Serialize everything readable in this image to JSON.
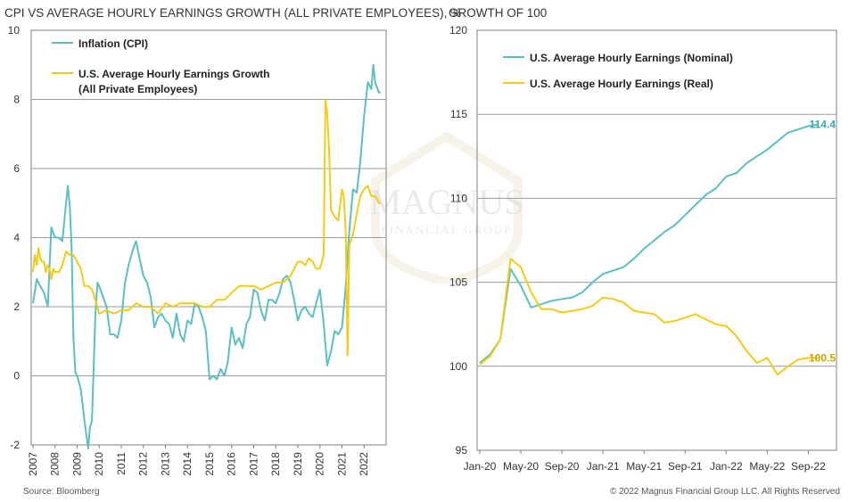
{
  "source": "Source: Bloomberg",
  "copyright": "© 2022 Magnus Financial Group LLC. All Rights Reserved",
  "watermark": {
    "line1": "MAGNUS",
    "line2": "FINANCIAL GROUP"
  },
  "colors": {
    "cpi": "#5bbfc3",
    "wage": "#f2cb19",
    "nominal": "#5bbfc3",
    "real": "#f2cb19",
    "grid": "#9a9a9a",
    "axis": "#808080"
  },
  "chart_data": [
    {
      "type": "line",
      "title": "CPI VS AVERAGE HOURLY EARNINGS GROWTH (ALL PRIVATE EMPLOYEES), %",
      "xlabel": "",
      "ylabel": "",
      "xlim": [
        2006.92,
        2023.0
      ],
      "ylim": [
        -2,
        10
      ],
      "yticks": [
        -2,
        0,
        2,
        4,
        6,
        8,
        10
      ],
      "xticks": [
        "2007",
        "2008",
        "2009",
        "2010",
        "2011",
        "2012",
        "2013",
        "2014",
        "2015",
        "2016",
        "2017",
        "2018",
        "2019",
        "2020",
        "2021",
        "2022"
      ],
      "grid": "horizontal",
      "legend": "top-left",
      "series": [
        {
          "name": "Inflation (CPI)",
          "color": "#5bbfc3",
          "x": [
            2007.0,
            2007.17,
            2007.33,
            2007.5,
            2007.67,
            2007.83,
            2008.0,
            2008.17,
            2008.33,
            2008.5,
            2008.58,
            2008.67,
            2008.75,
            2008.83,
            2008.92,
            2009.0,
            2009.17,
            2009.33,
            2009.5,
            2009.58,
            2009.67,
            2009.83,
            2009.92,
            2010.0,
            2010.17,
            2010.33,
            2010.5,
            2010.67,
            2010.83,
            2011.0,
            2011.17,
            2011.33,
            2011.5,
            2011.67,
            2011.83,
            2012.0,
            2012.17,
            2012.33,
            2012.5,
            2012.67,
            2012.83,
            2013.0,
            2013.17,
            2013.33,
            2013.5,
            2013.67,
            2013.83,
            2014.0,
            2014.17,
            2014.33,
            2014.5,
            2014.67,
            2014.83,
            2015.0,
            2015.17,
            2015.33,
            2015.5,
            2015.67,
            2015.83,
            2016.0,
            2016.17,
            2016.33,
            2016.5,
            2016.67,
            2016.83,
            2017.0,
            2017.17,
            2017.33,
            2017.5,
            2017.67,
            2017.83,
            2018.0,
            2018.17,
            2018.33,
            2018.5,
            2018.67,
            2018.83,
            2019.0,
            2019.17,
            2019.33,
            2019.5,
            2019.67,
            2019.83,
            2020.0,
            2020.17,
            2020.33,
            2020.5,
            2020.67,
            2020.83,
            2021.0,
            2021.17,
            2021.33,
            2021.5,
            2021.67,
            2021.83,
            2022.0,
            2022.17,
            2022.33,
            2022.42,
            2022.5,
            2022.67,
            2022.75
          ],
          "y": [
            2.1,
            2.8,
            2.6,
            2.4,
            2.0,
            4.3,
            4.0,
            4.0,
            3.9,
            5.0,
            5.5,
            4.9,
            3.7,
            1.1,
            0.1,
            0.0,
            -0.4,
            -1.3,
            -2.1,
            -1.5,
            -1.3,
            1.8,
            2.7,
            2.6,
            2.3,
            2.0,
            1.2,
            1.2,
            1.1,
            1.6,
            2.7,
            3.2,
            3.6,
            3.9,
            3.4,
            2.9,
            2.7,
            2.3,
            1.4,
            1.7,
            1.8,
            1.6,
            1.5,
            1.1,
            1.8,
            1.2,
            1.0,
            1.6,
            1.5,
            2.1,
            2.0,
            1.7,
            1.3,
            -0.1,
            0.0,
            -0.1,
            0.2,
            0.0,
            0.4,
            1.4,
            0.9,
            1.1,
            0.8,
            1.5,
            1.7,
            2.5,
            2.4,
            1.9,
            1.6,
            2.2,
            2.2,
            2.1,
            2.4,
            2.8,
            2.9,
            2.7,
            2.2,
            1.6,
            1.9,
            2.0,
            1.8,
            1.7,
            2.1,
            2.5,
            1.5,
            0.3,
            0.7,
            1.3,
            1.2,
            1.4,
            2.6,
            4.2,
            5.4,
            5.3,
            6.2,
            7.5,
            8.5,
            8.3,
            9.0,
            8.5,
            8.2,
            8.2
          ]
        },
        {
          "name": "U.S. Average Hourly Earnings Growth (All Private Employees)",
          "color": "#f2cb19",
          "x": [
            2007.0,
            2007.08,
            2007.17,
            2007.25,
            2007.33,
            2007.42,
            2007.5,
            2007.58,
            2007.67,
            2007.75,
            2007.83,
            2007.92,
            2008.0,
            2008.17,
            2008.33,
            2008.5,
            2008.67,
            2008.83,
            2009.0,
            2009.17,
            2009.33,
            2009.5,
            2009.67,
            2009.83,
            2010.0,
            2010.33,
            2010.67,
            2011.0,
            2011.33,
            2011.67,
            2012.0,
            2012.33,
            2012.67,
            2013.0,
            2013.33,
            2013.67,
            2014.0,
            2014.33,
            2014.67,
            2015.0,
            2015.33,
            2015.67,
            2016.0,
            2016.33,
            2016.67,
            2017.0,
            2017.33,
            2017.67,
            2018.0,
            2018.33,
            2018.67,
            2019.0,
            2019.17,
            2019.33,
            2019.5,
            2019.67,
            2019.83,
            2020.0,
            2020.17,
            2020.25,
            2020.33,
            2020.42,
            2020.5,
            2020.67,
            2020.83,
            2021.0,
            2021.08,
            2021.17,
            2021.25,
            2021.33,
            2021.5,
            2021.67,
            2021.83,
            2022.0,
            2022.17,
            2022.33,
            2022.5,
            2022.67,
            2022.75
          ],
          "y": [
            3.0,
            3.5,
            3.2,
            3.7,
            3.4,
            3.3,
            3.3,
            3.0,
            3.2,
            3.1,
            2.8,
            3.1,
            3.0,
            3.0,
            3.2,
            3.6,
            3.5,
            3.5,
            3.3,
            3.1,
            2.6,
            2.6,
            2.5,
            2.2,
            1.8,
            1.9,
            1.8,
            1.9,
            1.9,
            2.1,
            2.0,
            2.0,
            1.8,
            2.1,
            2.0,
            2.1,
            2.1,
            2.1,
            2.0,
            2.0,
            2.2,
            2.2,
            2.4,
            2.6,
            2.6,
            2.6,
            2.5,
            2.6,
            2.7,
            2.7,
            2.9,
            3.3,
            3.3,
            3.2,
            3.4,
            3.3,
            3.1,
            3.1,
            3.5,
            8.0,
            7.6,
            6.5,
            4.8,
            4.6,
            4.5,
            5.4,
            5.2,
            4.2,
            0.6,
            3.8,
            4.1,
            4.7,
            5.2,
            5.4,
            5.5,
            5.2,
            5.2,
            5.0,
            5.0
          ]
        }
      ]
    },
    {
      "type": "line",
      "title": "GROWTH OF 100",
      "xlabel": "",
      "ylabel": "",
      "xlim": [
        0,
        33
      ],
      "ylim": [
        95,
        120
      ],
      "yticks": [
        95,
        100,
        105,
        110,
        115,
        120
      ],
      "xticks": [
        "Jan-20",
        "May-20",
        "Sep-20",
        "Jan-21",
        "May-21",
        "Sep-21",
        "Jan-22",
        "May-22",
        "Sep-22"
      ],
      "xtick_positions": [
        0,
        4,
        8,
        12,
        16,
        20,
        24,
        28,
        32
      ],
      "grid": "horizontal",
      "legend": "top-left",
      "series": [
        {
          "name": "U.S. Average Hourly Earnings (Nominal)",
          "color": "#5bbfc3",
          "end_label": "114.4",
          "x": [
            0,
            1,
            2,
            3,
            4,
            5,
            6,
            7,
            8,
            9,
            10,
            11,
            12,
            13,
            14,
            15,
            16,
            17,
            18,
            19,
            20,
            21,
            22,
            23,
            24,
            25,
            26,
            27,
            28,
            29,
            30,
            31,
            32,
            33
          ],
          "y": [
            100.2,
            100.7,
            101.6,
            105.8,
            104.8,
            103.5,
            103.7,
            103.9,
            104.0,
            104.1,
            104.4,
            105.0,
            105.5,
            105.7,
            105.9,
            106.4,
            107.0,
            107.5,
            108.0,
            108.4,
            109.0,
            109.6,
            110.2,
            110.6,
            111.3,
            111.5,
            112.1,
            112.5,
            112.9,
            113.4,
            113.9,
            114.1,
            114.3,
            114.4
          ]
        },
        {
          "name": "U.S. Average Hourly Earnings (Real)",
          "color": "#f2cb19",
          "end_label": "100.5",
          "x": [
            0,
            1,
            2,
            3,
            4,
            5,
            6,
            7,
            8,
            9,
            10,
            11,
            12,
            13,
            14,
            15,
            16,
            17,
            18,
            19,
            20,
            21,
            22,
            23,
            24,
            25,
            26,
            27,
            28,
            29,
            30,
            31,
            32,
            33
          ],
          "y": [
            100.1,
            100.6,
            101.6,
            106.4,
            105.9,
            104.4,
            103.4,
            103.4,
            103.2,
            103.3,
            103.4,
            103.6,
            104.1,
            104.0,
            103.8,
            103.3,
            103.2,
            103.1,
            102.6,
            102.7,
            102.9,
            103.1,
            102.8,
            102.5,
            102.4,
            101.8,
            100.9,
            100.2,
            100.5,
            99.5,
            100.0,
            100.4,
            100.5,
            100.5
          ]
        }
      ]
    }
  ]
}
